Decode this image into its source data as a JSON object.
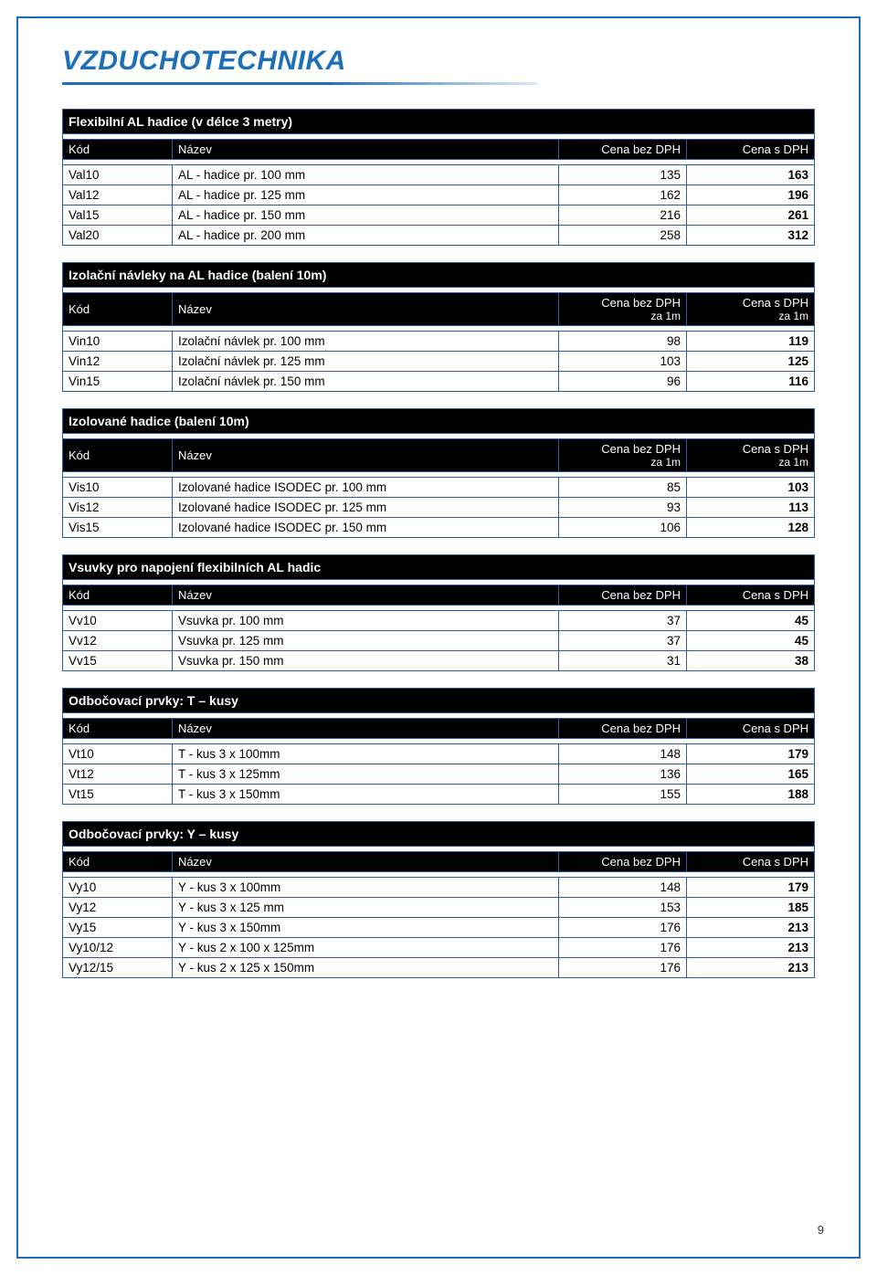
{
  "page": {
    "title": "VZDUCHOTECHNIKA",
    "number": "9"
  },
  "colors": {
    "brand": "#1d6fb8",
    "header_bg": "#000000",
    "header_fg": "#ffffff",
    "border": "#2e5aa0"
  },
  "column_labels": {
    "code": "Kód",
    "name": "Název",
    "price_ex": "Cena bez DPH",
    "price_inc": "Cena s DPH",
    "per1m": "za 1m"
  },
  "sections": [
    {
      "title": "Flexibilní AL hadice (v délce 3 metry)",
      "per1m": false,
      "rows": [
        {
          "code": "Val10",
          "name": "AL - hadice pr. 100 mm",
          "ex": "135",
          "inc": "163"
        },
        {
          "code": "Val12",
          "name": "AL - hadice pr. 125 mm",
          "ex": "162",
          "inc": "196"
        },
        {
          "code": "Val15",
          "name": "AL - hadice pr. 150 mm",
          "ex": "216",
          "inc": "261"
        },
        {
          "code": "Val20",
          "name": "AL - hadice pr. 200 mm",
          "ex": "258",
          "inc": "312"
        }
      ]
    },
    {
      "title": "Izolační návleky na AL hadice (balení 10m)",
      "per1m": true,
      "rows": [
        {
          "code": "Vin10",
          "name": "Izolační návlek pr. 100 mm",
          "ex": "98",
          "inc": "119"
        },
        {
          "code": "Vin12",
          "name": "Izolační návlek pr. 125 mm",
          "ex": "103",
          "inc": "125"
        },
        {
          "code": "Vin15",
          "name": "Izolační návlek pr. 150 mm",
          "ex": "96",
          "inc": "116"
        }
      ]
    },
    {
      "title": "Izolované hadice (balení 10m)",
      "per1m": true,
      "rows": [
        {
          "code": "Vis10",
          "name": "Izolované hadice ISODEC pr. 100 mm",
          "ex": "85",
          "inc": "103"
        },
        {
          "code": "Vis12",
          "name": "Izolované hadice ISODEC pr. 125 mm",
          "ex": "93",
          "inc": "113"
        },
        {
          "code": "Vis15",
          "name": "Izolované hadice ISODEC pr. 150 mm",
          "ex": "106",
          "inc": "128"
        }
      ]
    },
    {
      "title": "Vsuvky pro napojení flexibilních AL hadic",
      "per1m": false,
      "rows": [
        {
          "code": "Vv10",
          "name": "Vsuvka pr. 100 mm",
          "ex": "37",
          "inc": "45"
        },
        {
          "code": "Vv12",
          "name": "Vsuvka pr. 125 mm",
          "ex": "37",
          "inc": "45"
        },
        {
          "code": "Vv15",
          "name": "Vsuvka pr. 150 mm",
          "ex": "31",
          "inc": "38"
        }
      ]
    },
    {
      "title": "Odbočovací prvky:   T – kusy",
      "per1m": false,
      "rows": [
        {
          "code": "Vt10",
          "name": "T - kus 3 x 100mm",
          "ex": "148",
          "inc": "179"
        },
        {
          "code": "Vt12",
          "name": "T - kus 3 x 125mm",
          "ex": "136",
          "inc": "165"
        },
        {
          "code": "Vt15",
          "name": "T - kus 3 x 150mm",
          "ex": "155",
          "inc": "188"
        }
      ]
    },
    {
      "title": "Odbočovací prvky:   Y – kusy",
      "per1m": false,
      "rows": [
        {
          "code": "Vy10",
          "name": "Y - kus 3 x 100mm",
          "ex": "148",
          "inc": "179"
        },
        {
          "code": "Vy12",
          "name": "Y - kus 3 x 125 mm",
          "ex": "153",
          "inc": "185"
        },
        {
          "code": "Vy15",
          "name": "Y - kus 3 x 150mm",
          "ex": "176",
          "inc": "213"
        },
        {
          "code": "Vy10/12",
          "name": "Y - kus 2 x 100 x 125mm",
          "ex": "176",
          "inc": "213"
        },
        {
          "code": "Vy12/15",
          "name": "Y - kus 2 x 125 x 150mm",
          "ex": "176",
          "inc": "213"
        }
      ]
    }
  ]
}
